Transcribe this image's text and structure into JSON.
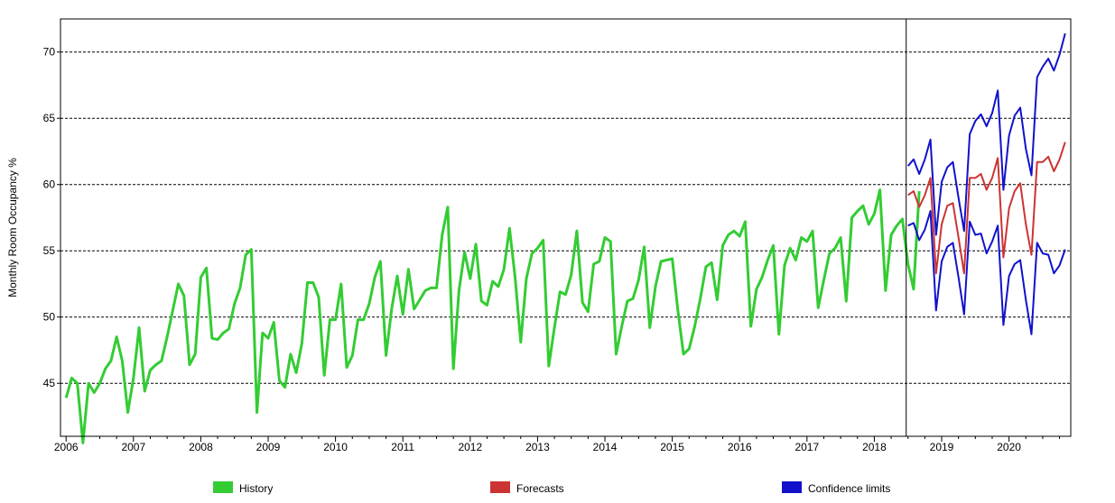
{
  "chart_data": {
    "type": "line",
    "title": "",
    "xlabel": "",
    "ylabel": "Monthly Room Occupancy %",
    "x_range": [
      "2005-12",
      "2020-12"
    ],
    "ylim": [
      41,
      72.5
    ],
    "y_ticks": [
      45,
      50,
      55,
      60,
      65,
      70
    ],
    "x_tick_labels": [
      "2006",
      "2007",
      "2008",
      "2009",
      "2010",
      "2011",
      "2012",
      "2013",
      "2014",
      "2015",
      "2016",
      "2017",
      "2018",
      "2019",
      "2020"
    ],
    "grid": "horizontal dashed",
    "legend_position": "bottom",
    "forecast_origin": "2018-07",
    "colors": {
      "history": "#33cc33",
      "forecast": "#cc3333",
      "confidence": "#1111cc"
    },
    "series": [
      {
        "name": "History",
        "start": "2006-01",
        "values": [
          43.9,
          45.4,
          45.0,
          40.5,
          45.0,
          44.3,
          45.0,
          46.1,
          46.7,
          48.5,
          46.7,
          42.8,
          45.4,
          49.2,
          44.4,
          46.0,
          46.4,
          46.7,
          48.5,
          50.5,
          52.5,
          51.6,
          46.4,
          47.2,
          53.0,
          53.7,
          48.4,
          48.3,
          48.8,
          49.1,
          51.0,
          52.2,
          54.7,
          55.1,
          42.8,
          48.8,
          48.4,
          49.6,
          45.2,
          44.7,
          47.2,
          45.8,
          48.0,
          52.6,
          52.6,
          51.5,
          45.6,
          49.8,
          49.8,
          52.5,
          46.2,
          47.1,
          49.8,
          49.8,
          51.0,
          53.0,
          54.2,
          47.1,
          50.6,
          53.1,
          50.2,
          53.6,
          50.6,
          51.3,
          52.0,
          52.2,
          52.2,
          56.2,
          58.3,
          46.1,
          52.0,
          54.9,
          52.9,
          55.5,
          51.2,
          50.9,
          52.7,
          52.3,
          53.6,
          56.7,
          53.0,
          48.1,
          52.9,
          54.8,
          55.2,
          55.8,
          46.3,
          49.2,
          51.9,
          51.7,
          53.2,
          56.5,
          51.1,
          50.4,
          54.0,
          54.2,
          56.0,
          55.7,
          47.2,
          49.3,
          51.2,
          51.4,
          52.8,
          55.3,
          49.2,
          52.3,
          54.2,
          54.3,
          54.4,
          50.5,
          47.2,
          47.6,
          49.3,
          51.4,
          53.8,
          54.1,
          51.3,
          55.4,
          56.2,
          56.5,
          56.1,
          57.2,
          49.3,
          52.1,
          53.0,
          54.3,
          55.4,
          48.7,
          53.9,
          55.2,
          54.3,
          56.0,
          55.7,
          56.5,
          50.7,
          52.8,
          54.8,
          55.2,
          56.0,
          51.2,
          57.5,
          58.0,
          58.4,
          57.0,
          57.8,
          59.6,
          52.0,
          56.2,
          56.9,
          57.4,
          54.0,
          52.1,
          59.5
        ]
      },
      {
        "name": "Forecasts",
        "start": "2018-07",
        "values": [
          59.2,
          59.5,
          58.3,
          59.2,
          60.5,
          53.3,
          57.0,
          58.4,
          58.6,
          56.0,
          53.3,
          60.5,
          60.5,
          60.8,
          59.6,
          60.5,
          62.0,
          54.5,
          58.2,
          59.5,
          60.1,
          57.0,
          54.7,
          61.7,
          61.7,
          62.1,
          61.0,
          61.9,
          63.2
        ]
      },
      {
        "name": "Confidence limits",
        "start": "2018-07",
        "values": [
          61.4,
          61.9,
          60.8,
          61.9,
          63.4,
          56.2,
          60.2,
          61.3,
          61.7,
          59.0,
          56.5,
          63.8,
          64.8,
          65.3,
          64.4,
          65.4,
          67.1,
          59.6,
          63.7,
          65.2,
          65.8,
          62.7,
          60.7,
          68.1,
          68.9,
          69.5,
          68.6,
          69.8,
          71.4
        ]
      },
      {
        "name": "Confidence limits",
        "start": "2018-07",
        "values": [
          56.9,
          57.1,
          55.8,
          56.6,
          58.0,
          50.5,
          54.2,
          55.3,
          55.6,
          53.0,
          50.2,
          57.2,
          56.2,
          56.3,
          54.8,
          55.7,
          56.9,
          49.4,
          53.1,
          54.0,
          54.3,
          51.3,
          48.7,
          55.6,
          54.8,
          54.7,
          53.3,
          53.9,
          55.1
        ]
      }
    ]
  }
}
